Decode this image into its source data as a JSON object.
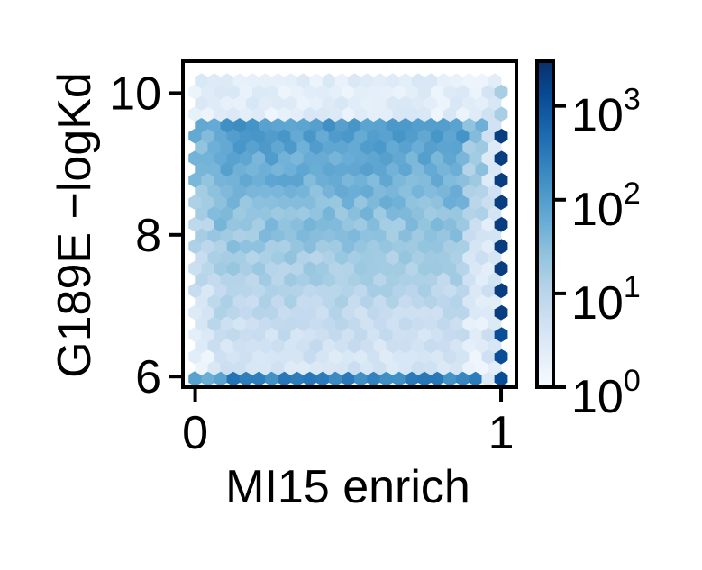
{
  "chart_data": {
    "type": "hexbin",
    "xlabel": "MI15 enrich",
    "ylabel": "G189E −logKd",
    "xlim": [
      -0.04,
      1.05
    ],
    "ylim": [
      5.85,
      10.45
    ],
    "x_ticks": [
      {
        "value": 0,
        "label": "0"
      },
      {
        "value": 1,
        "label": "1"
      }
    ],
    "y_ticks": [
      {
        "value": 6,
        "label": "6"
      },
      {
        "value": 8,
        "label": "8"
      },
      {
        "value": 10,
        "label": "10"
      }
    ],
    "colormap": "Blues",
    "color_scale": "log",
    "colorbar": {
      "min": 1,
      "max": 3000,
      "ticks": [
        {
          "value": 1,
          "base": "10",
          "exp": "0"
        },
        {
          "value": 10,
          "base": "10",
          "exp": "1"
        },
        {
          "value": 100,
          "base": "10",
          "exp": "2"
        },
        {
          "value": 1000,
          "base": "10",
          "exp": "3"
        }
      ]
    },
    "description_of_density": {
      "x_range": [
        0,
        1
      ],
      "y_range": [
        6,
        10
      ],
      "bulk_log10_counts": 2.0,
      "dense_edge_x1_log10": 3.3,
      "dense_edge_y6_log10": 2.4
    }
  },
  "colors": {
    "cmap": [
      "#f7fbff",
      "#deebf7",
      "#c6dbef",
      "#9ecae1",
      "#6baed6",
      "#4292c6",
      "#2171b5",
      "#08519c",
      "#08306b"
    ],
    "axis": "#000000"
  }
}
